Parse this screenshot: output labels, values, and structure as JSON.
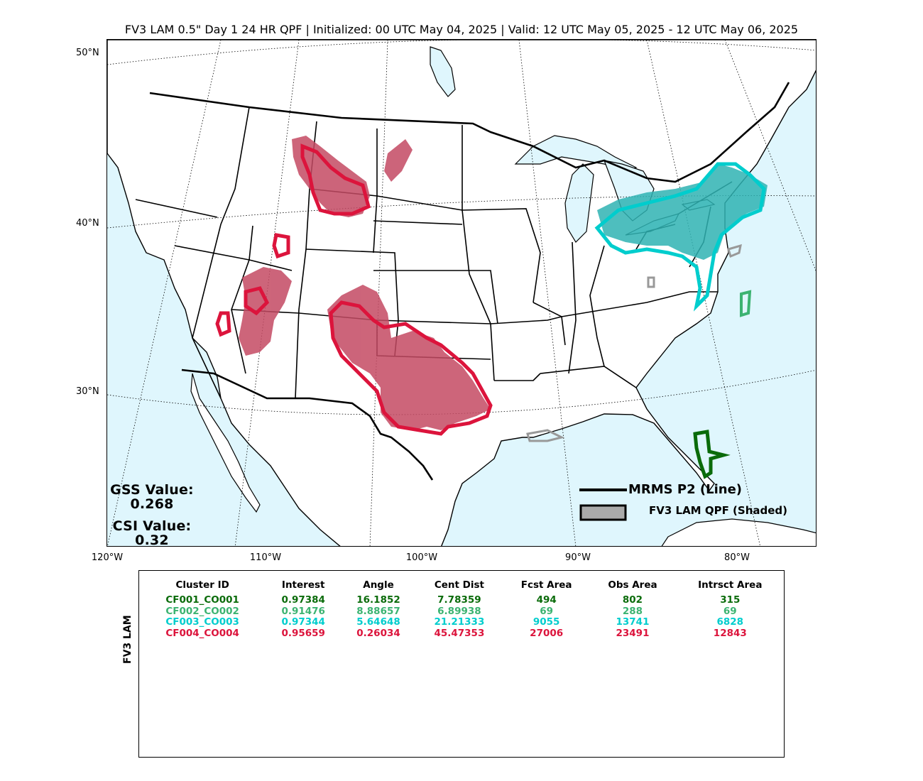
{
  "title": "FV3 LAM 0.5\" Day 1 24 HR QPF | Initialized: 00 UTC May 04, 2025 | Valid: 12 UTC May 05, 2025 - 12 UTC May 06, 2025",
  "map": {
    "lat_labels": [
      "50°N",
      "40°N",
      "30°N"
    ],
    "lon_labels": [
      "120°W",
      "110°W",
      "100°W",
      "90°W",
      "80°W"
    ],
    "colors": {
      "water": "#dff6fd",
      "land": "#ffffff",
      "cluster1": "#0a6b0a",
      "cluster2": "#3cb371",
      "cluster3": "#00cdcd",
      "cluster4": "#dc143c",
      "fill3": "#2fb3b3",
      "fill4": "#c44a63",
      "unmatched": "#999999"
    }
  },
  "scores": {
    "gss_label": "GSS Value:",
    "gss_value": "0.268",
    "csi_label": "CSI Value:",
    "csi_value": "0.32"
  },
  "legend": {
    "obs_label": "MRMS P2 (Line)",
    "fcst_label": "FV3 LAM QPF (Shaded)"
  },
  "stats": {
    "ylabel": "FV3 LAM",
    "columns": [
      "Cluster ID",
      "Interest",
      "Angle",
      "Cent Dist",
      "Fcst Area",
      "Obs Area",
      "Intrsct Area"
    ],
    "rows": [
      {
        "color": "#0a6b0a",
        "cells": [
          "CF001_CO001",
          "0.97384",
          "16.1852",
          "7.78359",
          "494",
          "802",
          "315"
        ]
      },
      {
        "color": "#3cb371",
        "cells": [
          "CF002_CO002",
          "0.91476",
          "8.88657",
          "6.89938",
          "69",
          "288",
          "69"
        ]
      },
      {
        "color": "#00cdcd",
        "cells": [
          "CF003_CO003",
          "0.97344",
          "5.64648",
          "21.21333",
          "9055",
          "13741",
          "6828"
        ]
      },
      {
        "color": "#dc143c",
        "cells": [
          "CF004_CO004",
          "0.95659",
          "0.26034",
          "45.47353",
          "27006",
          "23491",
          "12843"
        ]
      }
    ]
  }
}
